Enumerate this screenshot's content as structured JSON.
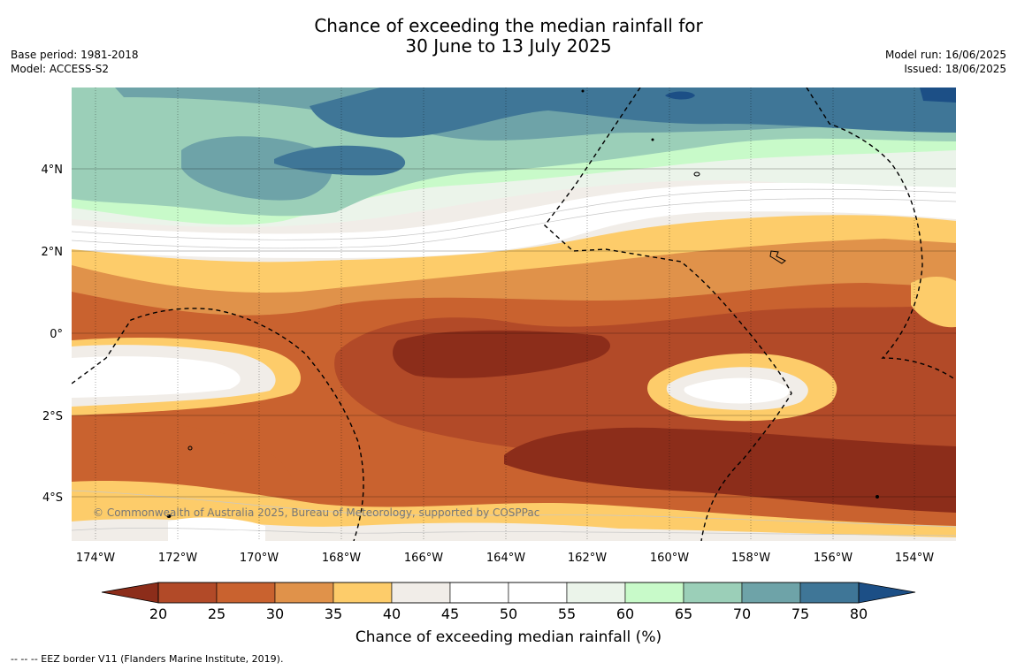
{
  "header": {
    "title_line1": "Chance of exceeding the median rainfall for",
    "title_line2": "30 June to 13 July 2025",
    "base_period": "Base period: 1981-2018",
    "model": "Model: ACCESS-S2",
    "model_run": "Model run: 16/06/2025",
    "issued": "Issued: 18/06/2025"
  },
  "map": {
    "copyright": "© Commonwealth of Australia 2025, Bureau of Meteorology, supported by COSPPac",
    "lon_labels": [
      "174°W",
      "172°W",
      "170°W",
      "168°W",
      "166°W",
      "164°W",
      "162°W",
      "160°W",
      "158°W",
      "156°W",
      "154°W"
    ],
    "lat_labels": [
      "4°N",
      "2°N",
      "0°",
      "2°S",
      "4°S"
    ]
  },
  "colorbar": {
    "ticks": [
      "20",
      "25",
      "30",
      "35",
      "40",
      "45",
      "50",
      "55",
      "60",
      "65",
      "70",
      "75",
      "80"
    ],
    "label": "Chance of exceeding median rainfall (%)",
    "colors": [
      "#8c2d1a",
      "#b24a28",
      "#c9622f",
      "#e0924a",
      "#fdcc6a",
      "#f1ede8",
      "#ffffff",
      "#ffffff",
      "#ebf4ea",
      "#c8fac9",
      "#9bcfb8",
      "#6ea3a8",
      "#3f7697",
      "#1c4f86"
    ]
  },
  "footer": {
    "eez_note": "--  --  -- EEZ border V11 (Flanders Marine Institute, 2019)."
  }
}
